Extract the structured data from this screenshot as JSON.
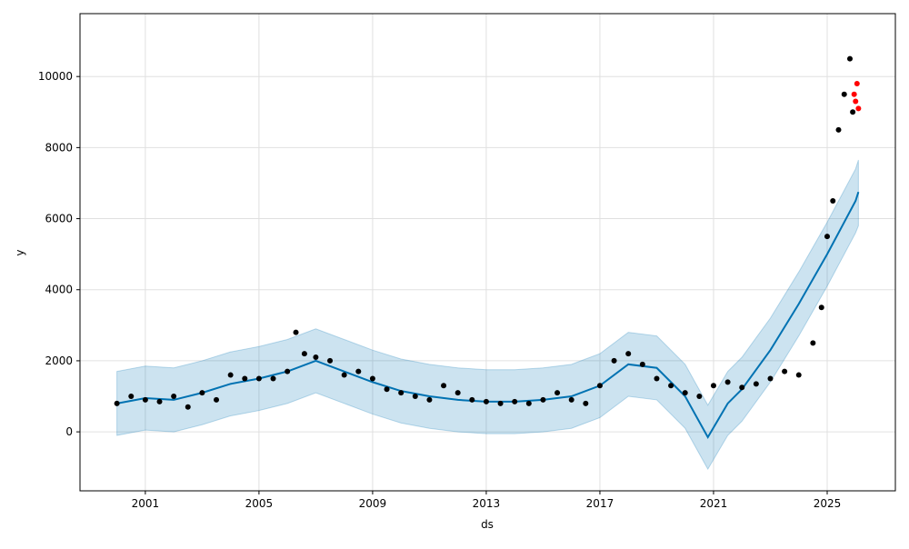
{
  "chart_data": {
    "type": "forecast",
    "x_label": "ds",
    "y_label": "y",
    "xlim": [
      1998.7,
      2027.4
    ],
    "ylim": [
      -1660,
      11770
    ],
    "xticks": [
      2001,
      2005,
      2009,
      2013,
      2017,
      2021,
      2025
    ],
    "yticks": [
      0,
      2000,
      4000,
      6000,
      8000,
      10000
    ],
    "grid": true,
    "forecast": {
      "color": "#0072B2",
      "x": [
        2000,
        2001,
        2002,
        2003,
        2004,
        2005,
        2006,
        2007,
        2008,
        2009,
        2010,
        2011,
        2012,
        2013,
        2014,
        2015,
        2016,
        2017,
        2018,
        2019,
        2020,
        2020.8,
        2021.5,
        2022,
        2023,
        2024,
        2025,
        2026,
        2026.1
      ],
      "values": [
        800,
        950,
        900,
        1100,
        1350,
        1500,
        1700,
        2000,
        1700,
        1400,
        1150,
        1000,
        900,
        850,
        850,
        900,
        1000,
        1300,
        1900,
        1800,
        1000,
        -150,
        800,
        1200,
        2300,
        3600,
        5000,
        6500,
        6750
      ],
      "lower": [
        -100,
        50,
        0,
        200,
        450,
        600,
        800,
        1100,
        800,
        500,
        250,
        100,
        0,
        -50,
        -50,
        0,
        100,
        400,
        1000,
        900,
        100,
        -1050,
        -100,
        300,
        1400,
        2700,
        4100,
        5600,
        5800
      ],
      "upper": [
        1700,
        1850,
        1800,
        2000,
        2250,
        2400,
        2600,
        2900,
        2600,
        2300,
        2050,
        1900,
        1800,
        1750,
        1750,
        1800,
        1900,
        2200,
        2800,
        2700,
        1900,
        750,
        1700,
        2100,
        3200,
        4500,
        5900,
        7400,
        7650
      ]
    },
    "actual": {
      "color": "#000000",
      "x": [
        2000.0,
        2000.5,
        2001.0,
        2001.5,
        2002.0,
        2002.5,
        2003.0,
        2003.5,
        2004.0,
        2004.5,
        2005.0,
        2005.5,
        2006.0,
        2006.3,
        2006.6,
        2007.0,
        2007.5,
        2008.0,
        2008.5,
        2009.0,
        2009.5,
        2010.0,
        2010.5,
        2011.0,
        2011.5,
        2012.0,
        2012.5,
        2013.0,
        2013.5,
        2014.0,
        2014.5,
        2015.0,
        2015.5,
        2016.0,
        2016.5,
        2017.0,
        2017.5,
        2018.0,
        2018.5,
        2019.0,
        2019.5,
        2020.0,
        2020.5,
        2021.0,
        2021.5,
        2022.0,
        2022.5,
        2023.0,
        2023.5,
        2024.0,
        2024.5,
        2024.8,
        2025.0,
        2025.2,
        2025.4,
        2025.6,
        2025.8,
        2025.9
      ],
      "values": [
        800,
        1000,
        900,
        850,
        1000,
        700,
        1100,
        900,
        1600,
        1500,
        1500,
        1500,
        1700,
        2800,
        2200,
        2100,
        2000,
        1600,
        1700,
        1500,
        1200,
        1100,
        1000,
        900,
        1300,
        1100,
        900,
        850,
        800,
        850,
        800,
        900,
        1100,
        900,
        800,
        1300,
        2000,
        2200,
        1900,
        1500,
        1300,
        1100,
        1000,
        1300,
        1400,
        1250,
        1350,
        1500,
        1700,
        1600,
        2500,
        3500,
        5500,
        6500,
        8500,
        9500,
        10500,
        9000
      ]
    },
    "recent": {
      "color": "#ff0000",
      "x": [
        2025.95,
        2026.0,
        2026.05,
        2026.1
      ],
      "values": [
        9500,
        9300,
        9800,
        9100
      ]
    }
  }
}
